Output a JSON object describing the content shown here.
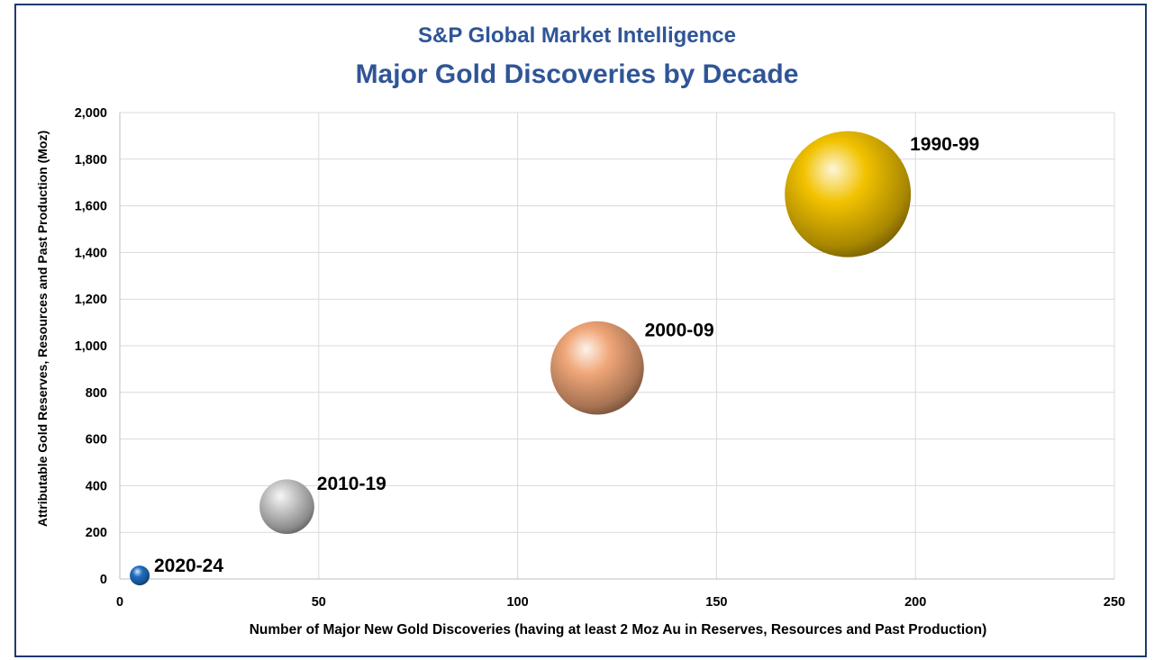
{
  "chart_data": {
    "type": "scatter",
    "subtype": "bubble",
    "title": "S&P Global Market Intelligence",
    "subtitle": "Major Gold Discoveries by Decade",
    "xlabel": "Number of Major New Gold Discoveries (having at least 2 Moz Au in Reserves, Resources and Past Production)",
    "ylabel": "Attributable Gold Reserves, Resources and Past Production (Moz)",
    "xlim": [
      0,
      250
    ],
    "ylim": [
      0,
      2000
    ],
    "xticks": [
      0,
      50,
      100,
      150,
      200,
      250
    ],
    "yticks": [
      0,
      200,
      400,
      600,
      800,
      1000,
      1200,
      1400,
      1600,
      1800,
      2000
    ],
    "ytick_labels": [
      "0",
      "200",
      "400",
      "600",
      "800",
      "1,000",
      "1,200",
      "1,400",
      "1,600",
      "1,800",
      "2,000"
    ],
    "grid": true,
    "points": [
      {
        "label": "1990-99",
        "x": 183,
        "y": 1650,
        "size": 1650,
        "color": "#f2c200"
      },
      {
        "label": "2000-09",
        "x": 120,
        "y": 905,
        "size": 905,
        "color": "#f0a678"
      },
      {
        "label": "2010-19",
        "x": 42,
        "y": 310,
        "size": 310,
        "color": "#c8c8c8"
      },
      {
        "label": "2020-24",
        "x": 5,
        "y": 15,
        "size": 15,
        "color": "#1f6fc4"
      }
    ]
  }
}
